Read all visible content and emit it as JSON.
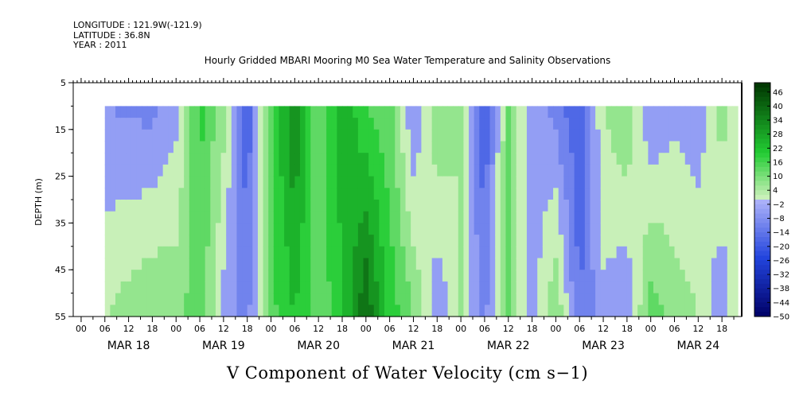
{
  "meta": {
    "longitude": "LONGITUDE : 121.9W(-121.9)",
    "latitude": "LATITUDE : 36.8N",
    "year": "YEAR : 2011"
  },
  "chart_data": {
    "type": "heatmap",
    "title": "Hourly Gridded MBARI Mooring M0 Sea Water Temperature and Salinity Observations",
    "variable_title": "V Component of Water Velocity (cm s−1)",
    "ylabel": "DEPTH (m)",
    "y_ticks": [
      "5",
      "15",
      "25",
      "35",
      "45",
      "55"
    ],
    "ylim": [
      5,
      55
    ],
    "y_inverted": true,
    "data_depth_range": [
      10,
      55
    ],
    "x_start": "MAR 17 22:00",
    "x_end": "MAR 24 23:00",
    "data_start": "MAR 18 06:00",
    "data_end": "MAR 24 22:00",
    "hour_ticks": [
      "00",
      "06",
      "12",
      "18"
    ],
    "days": [
      "MAR 18",
      "MAR 19",
      "MAR 20",
      "MAR 21",
      "MAR 22",
      "MAR 23",
      "MAR 24"
    ],
    "colorbar": {
      "labels": [
        "46",
        "40",
        "34",
        "28",
        "22",
        "16",
        "10",
        "4",
        "−2",
        "−8",
        "−14",
        "−20",
        "−26",
        "−32",
        "−38",
        "−44",
        "−50"
      ],
      "min": -50,
      "max": 50,
      "colors": {
        "neg_dark": "#000066",
        "neg_mid": "#2244dd",
        "neg_light": "#aab0f8",
        "pos_light": "#c8f0b8",
        "pos_mid": "#22cc33",
        "pos_dark": "#003300"
      }
    },
    "velocity_profile": [
      {
        "time": "MAR 18 06:00",
        "v_top": -8,
        "v_bottom": 4
      },
      {
        "time": "MAR 18 18:00",
        "v_top": -10,
        "v_bottom": 10
      },
      {
        "time": "MAR 19 00:00",
        "v_top": -4,
        "v_bottom": 8
      },
      {
        "time": "MAR 19 06:00",
        "v_top": 18,
        "v_bottom": 14
      },
      {
        "time": "MAR 19 12:00",
        "v_top": 6,
        "v_bottom": -4
      },
      {
        "time": "MAR 19 18:00",
        "v_top": -20,
        "v_bottom": -10
      },
      {
        "time": "MAR 20 00:00",
        "v_top": 16,
        "v_bottom": 14
      },
      {
        "time": "MAR 20 06:00",
        "v_top": 34,
        "v_bottom": 22
      },
      {
        "time": "MAR 20 12:00",
        "v_top": 10,
        "v_bottom": 12
      },
      {
        "time": "MAR 20 18:00",
        "v_top": 28,
        "v_bottom": 20
      },
      {
        "time": "MAR 21 00:00",
        "v_top": 16,
        "v_bottom": 40
      },
      {
        "time": "MAR 21 06:00",
        "v_top": 12,
        "v_bottom": 20
      },
      {
        "time": "MAR 21 12:00",
        "v_top": -8,
        "v_bottom": 10
      },
      {
        "time": "MAR 21 18:00",
        "v_top": 10,
        "v_bottom": -8
      },
      {
        "time": "MAR 22 00:00",
        "v_top": 4,
        "v_bottom": 4
      },
      {
        "time": "MAR 22 06:00",
        "v_top": -20,
        "v_bottom": -10
      },
      {
        "time": "MAR 22 12:00",
        "v_top": 10,
        "v_bottom": 12
      },
      {
        "time": "MAR 22 18:00",
        "v_top": -4,
        "v_bottom": -6
      },
      {
        "time": "MAR 23 00:00",
        "v_top": -10,
        "v_bottom": 10
      },
      {
        "time": "MAR 23 06:00",
        "v_top": -20,
        "v_bottom": -14
      },
      {
        "time": "MAR 23 12:00",
        "v_top": 4,
        "v_bottom": -4
      },
      {
        "time": "MAR 23 18:00",
        "v_top": 10,
        "v_bottom": -8
      },
      {
        "time": "MAR 24 00:00",
        "v_top": -8,
        "v_bottom": 14
      },
      {
        "time": "MAR 24 06:00",
        "v_top": -4,
        "v_bottom": 8
      },
      {
        "time": "MAR 24 12:00",
        "v_top": -6,
        "v_bottom": 4
      },
      {
        "time": "MAR 24 18:00",
        "v_top": 8,
        "v_bottom": -8
      },
      {
        "time": "MAR 24 22:00",
        "v_top": -4,
        "v_bottom": 4
      }
    ],
    "grid": false,
    "legend_position": "right"
  }
}
